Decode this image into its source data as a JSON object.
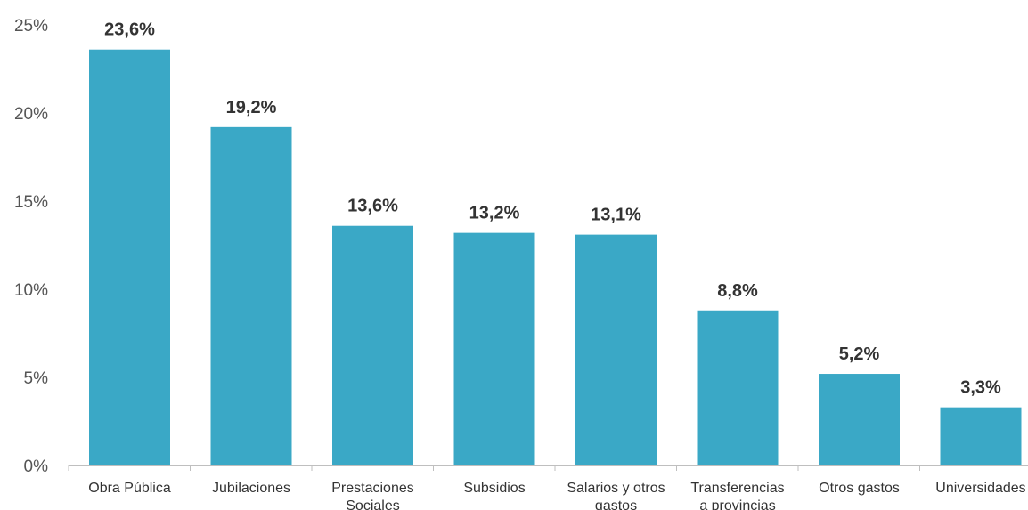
{
  "chart_data": {
    "type": "bar",
    "categories": [
      [
        "Obra Pública"
      ],
      [
        "Jubilaciones"
      ],
      [
        "Prestaciones",
        "Sociales"
      ],
      [
        "Subsidios"
      ],
      [
        "Salarios y otros",
        "gastos"
      ],
      [
        "Transferencias",
        "a provincias"
      ],
      [
        "Otros gastos"
      ],
      [
        "Universidades"
      ]
    ],
    "values": [
      23.6,
      19.2,
      13.6,
      13.2,
      13.1,
      8.8,
      5.2,
      3.3
    ],
    "data_labels": [
      "23,6%",
      "19,2%",
      "13,6%",
      "13,2%",
      "13,1%",
      "8,8%",
      "5,2%",
      "3,3%"
    ],
    "y_ticks": [
      0,
      5,
      10,
      15,
      20,
      25
    ],
    "y_tick_labels": [
      "0%",
      "5%",
      "10%",
      "15%",
      "20%",
      "25%"
    ],
    "ylim": [
      0,
      25
    ],
    "grid": false,
    "bar_color": "#3aa8c6",
    "axis_color": "#bfbfbf"
  }
}
